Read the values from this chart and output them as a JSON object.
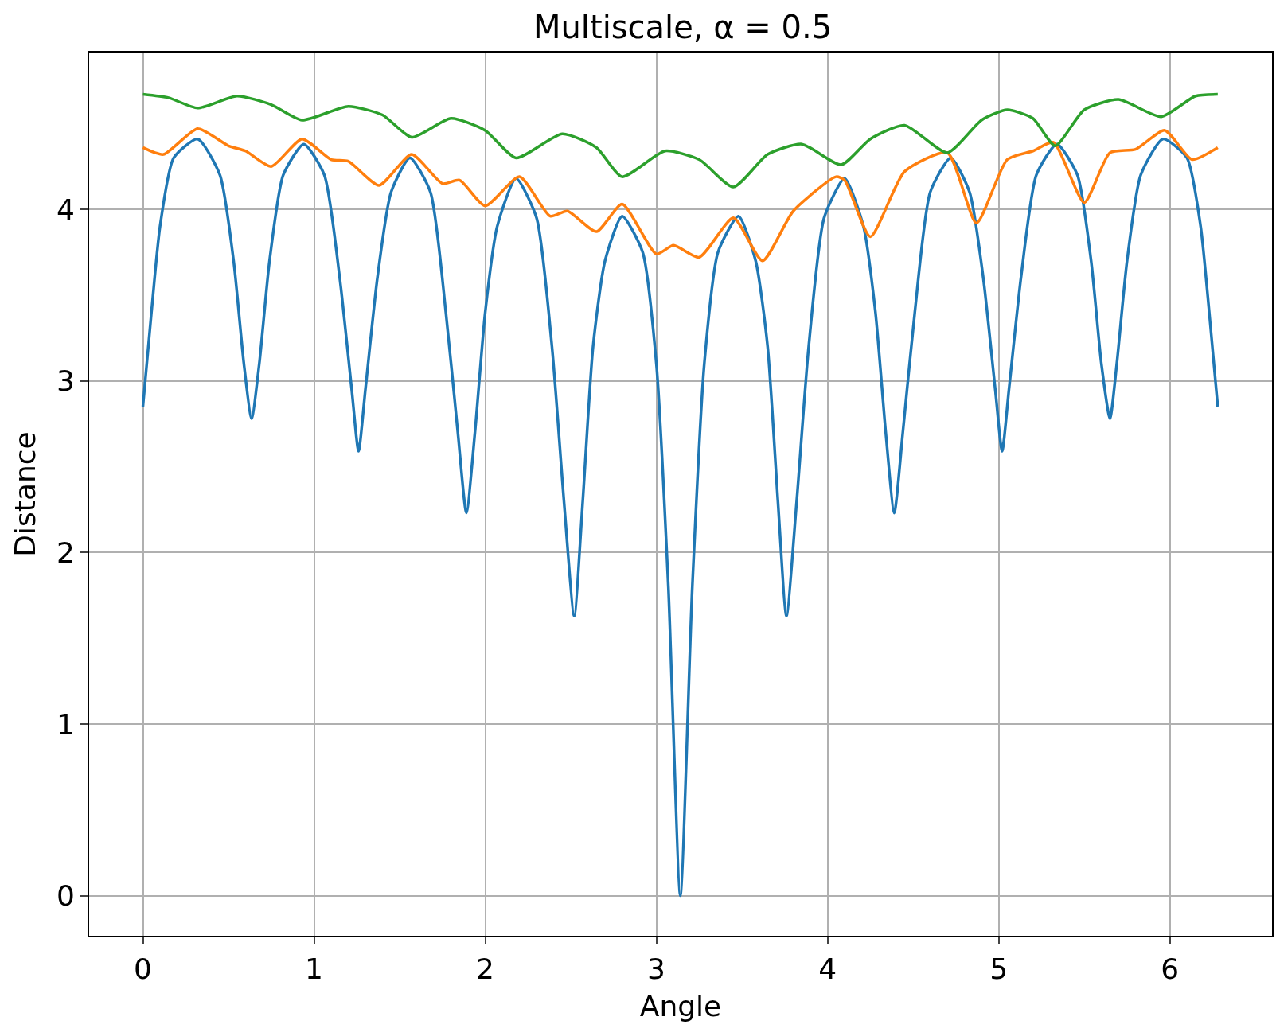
{
  "chart_data": {
    "type": "line",
    "title": "Multiscale, α = 0.5",
    "xlabel": "Angle",
    "ylabel": "Distance",
    "series": [
      {
        "color": "#1f77b4",
        "x": [
          0,
          0.05,
          0.1,
          0.18,
          0.32,
          0.45,
          0.53,
          0.59,
          0.635,
          0.68,
          0.74,
          0.82,
          0.94,
          1.06,
          1.15,
          1.22,
          1.26,
          1.3,
          1.37,
          1.45,
          1.56,
          1.68,
          1.77,
          1.84,
          1.89,
          1.94,
          2.0,
          2.07,
          2.18,
          2.3,
          2.39,
          2.46,
          2.52,
          2.57,
          2.63,
          2.7,
          2.8,
          2.92,
          3.0,
          3.07,
          3.14,
          3.21,
          3.28,
          3.36,
          3.48,
          3.58,
          3.65,
          3.71,
          3.76,
          3.82,
          3.89,
          3.98,
          4.1,
          4.21,
          4.28,
          4.34,
          4.39,
          4.44,
          4.51,
          4.6,
          4.72,
          4.83,
          4.91,
          4.98,
          5.02,
          5.06,
          5.13,
          5.22,
          5.34,
          5.46,
          5.54,
          5.6,
          5.65,
          5.69,
          5.75,
          5.83,
          5.96,
          6.1,
          6.18,
          6.23,
          6.28
        ],
        "values": [
          2.85,
          3.4,
          3.9,
          4.3,
          4.41,
          4.2,
          3.7,
          3.1,
          2.78,
          3.1,
          3.7,
          4.2,
          4.38,
          4.2,
          3.6,
          2.95,
          2.59,
          2.95,
          3.6,
          4.1,
          4.3,
          4.1,
          3.4,
          2.7,
          2.23,
          2.7,
          3.4,
          3.9,
          4.18,
          3.95,
          3.2,
          2.3,
          1.63,
          2.3,
          3.2,
          3.7,
          3.96,
          3.75,
          3.1,
          1.8,
          0,
          1.8,
          3.1,
          3.75,
          3.96,
          3.7,
          3.2,
          2.3,
          1.63,
          2.3,
          3.2,
          3.95,
          4.18,
          3.9,
          3.4,
          2.7,
          2.23,
          2.7,
          3.4,
          4.1,
          4.3,
          4.1,
          3.6,
          2.95,
          2.59,
          2.95,
          3.6,
          4.2,
          4.38,
          4.2,
          3.7,
          3.1,
          2.78,
          3.1,
          3.7,
          4.2,
          4.41,
          4.3,
          3.9,
          3.4,
          2.85
        ]
      },
      {
        "color": "#ff7f0e",
        "x": [
          0,
          0.12,
          0.32,
          0.5,
          0.6,
          0.75,
          0.93,
          1.1,
          1.2,
          1.38,
          1.57,
          1.75,
          1.85,
          2.0,
          2.2,
          2.38,
          2.48,
          2.65,
          2.8,
          3.0,
          3.1,
          3.25,
          3.45,
          3.62,
          3.8,
          4.05,
          4.1,
          4.25,
          4.45,
          4.7,
          4.87,
          5.05,
          5.2,
          5.32,
          5.5,
          5.65,
          5.8,
          5.97,
          6.13,
          6.28
        ],
        "values": [
          4.36,
          4.32,
          4.47,
          4.37,
          4.34,
          4.25,
          4.41,
          4.29,
          4.28,
          4.14,
          4.32,
          4.15,
          4.17,
          4.02,
          4.19,
          3.96,
          3.99,
          3.87,
          4.03,
          3.74,
          3.79,
          3.72,
          3.95,
          3.7,
          3.99,
          4.19,
          4.17,
          3.84,
          4.22,
          4.33,
          3.92,
          4.29,
          4.34,
          4.39,
          4.04,
          4.33,
          4.35,
          4.46,
          4.29,
          4.36
        ]
      },
      {
        "color": "#2ca02c",
        "x": [
          0,
          0.15,
          0.32,
          0.55,
          0.75,
          0.93,
          1.2,
          1.4,
          1.57,
          1.8,
          2.0,
          2.18,
          2.45,
          2.65,
          2.8,
          3.05,
          3.25,
          3.45,
          3.65,
          3.85,
          4.08,
          4.25,
          4.45,
          4.7,
          4.9,
          5.05,
          5.2,
          5.33,
          5.5,
          5.7,
          5.95,
          6.15,
          6.28
        ],
        "values": [
          4.67,
          4.65,
          4.59,
          4.66,
          4.61,
          4.52,
          4.6,
          4.55,
          4.42,
          4.53,
          4.46,
          4.3,
          4.44,
          4.36,
          4.19,
          4.34,
          4.29,
          4.13,
          4.32,
          4.38,
          4.26,
          4.41,
          4.49,
          4.33,
          4.52,
          4.58,
          4.53,
          4.37,
          4.58,
          4.64,
          4.54,
          4.66,
          4.67
        ]
      }
    ],
    "xlim": [
      -0.314,
      6.597
    ],
    "ylim": [
      -0.234,
      4.914
    ],
    "xticks": [
      0,
      1,
      2,
      3,
      4,
      5,
      6
    ],
    "yticks": [
      0,
      1,
      2,
      3,
      4
    ],
    "grid": true,
    "legend": false
  }
}
